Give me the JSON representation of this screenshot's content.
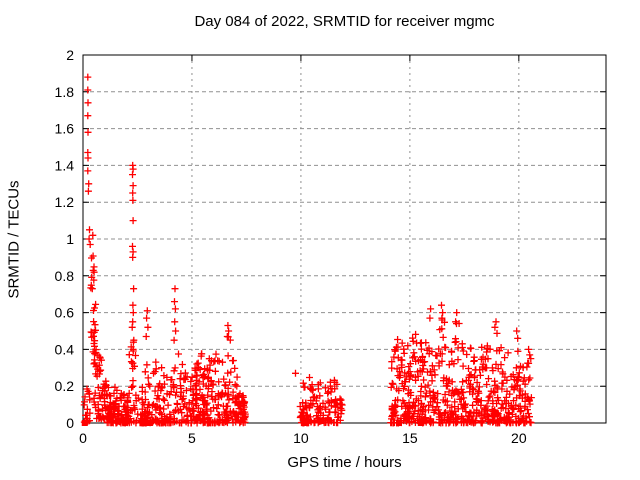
{
  "chart_data": {
    "type": "scatter",
    "title": "Day 084 of 2022, SRMTID for receiver mgmc",
    "xlabel": "GPS time / hours",
    "ylabel": "SRMTID / TECUs",
    "xlim": [
      0,
      24
    ],
    "ylim": [
      0,
      2
    ],
    "xticks": {
      "values": [
        0,
        5,
        10,
        15,
        20
      ],
      "labels": [
        "0",
        "5",
        "10",
        "15",
        "20"
      ]
    },
    "yticks": {
      "values": [
        0,
        0.2,
        0.4,
        0.6,
        0.8,
        1.0,
        1.2,
        1.4,
        1.6,
        1.8,
        2.0
      ],
      "labels": [
        "0",
        "0.2",
        "0.4",
        "0.6",
        "0.8",
        "1",
        "1.2",
        "1.4",
        "1.6",
        "1.8",
        "2"
      ]
    },
    "grid": true,
    "legend_position": "none",
    "style": {
      "point_color": "#ff0000",
      "grid_color": "#909090",
      "axis_color": "#000000",
      "background": "#ffffff",
      "marker": "plus",
      "marker_size": 7,
      "square_marker_size": 6
    },
    "seed": 1234,
    "spike_points": [
      [
        0.22,
        1.88
      ],
      [
        0.22,
        1.81
      ],
      [
        0.23,
        1.74
      ],
      [
        0.22,
        1.67
      ],
      [
        0.23,
        1.58
      ],
      [
        0.22,
        1.47
      ],
      [
        0.23,
        1.44
      ],
      [
        0.22,
        1.37
      ],
      [
        0.26,
        1.3
      ],
      [
        0.25,
        1.26
      ],
      [
        0.3,
        1.05
      ],
      [
        0.28,
        1.0
      ],
      [
        0.33,
        0.97
      ],
      [
        0.45,
        1.02
      ],
      [
        2.28,
        1.4
      ],
      [
        2.3,
        1.38
      ],
      [
        2.27,
        1.35
      ],
      [
        2.3,
        1.29
      ],
      [
        2.28,
        1.25
      ],
      [
        2.29,
        1.21
      ],
      [
        2.3,
        1.1
      ],
      [
        2.27,
        0.96
      ],
      [
        2.3,
        0.93
      ],
      [
        2.28,
        0.9
      ],
      [
        2.32,
        0.73
      ],
      [
        2.29,
        0.64
      ],
      [
        2.31,
        0.6
      ],
      [
        2.28,
        0.55
      ],
      [
        2.26,
        0.52
      ],
      [
        2.33,
        0.45
      ],
      [
        2.3,
        0.4
      ],
      [
        2.95,
        0.61
      ],
      [
        2.92,
        0.57
      ],
      [
        2.98,
        0.52
      ],
      [
        2.9,
        0.47
      ],
      [
        4.22,
        0.73
      ],
      [
        4.2,
        0.66
      ],
      [
        4.24,
        0.62
      ],
      [
        4.21,
        0.55
      ],
      [
        4.25,
        0.5
      ],
      [
        4.18,
        0.45
      ],
      [
        6.65,
        0.53
      ],
      [
        6.68,
        0.5
      ],
      [
        6.62,
        0.47
      ],
      [
        9.75,
        0.27
      ],
      [
        15.95,
        0.62
      ],
      [
        15.92,
        0.57
      ],
      [
        16.45,
        0.64
      ],
      [
        16.5,
        0.6
      ],
      [
        16.48,
        0.56
      ],
      [
        17.15,
        0.6
      ],
      [
        17.1,
        0.55
      ],
      [
        18.95,
        0.55
      ],
      [
        18.9,
        0.52
      ],
      [
        19.9,
        0.5
      ],
      [
        19.95,
        0.46
      ],
      [
        20.45,
        0.4
      ],
      [
        20.5,
        0.37
      ],
      [
        20.55,
        0.35
      ]
    ],
    "zero_squares": [
      0.08,
      3.07,
      10.2,
      14.5,
      15.5
    ],
    "clusters": [
      {
        "x0": 0.05,
        "x1": 0.32,
        "n": 20,
        "floor": 0,
        "bias": 1.8,
        "env": [
          [
            0.05,
            0.22
          ],
          [
            0.32,
            0.16
          ]
        ]
      },
      {
        "x0": 0.35,
        "x1": 0.6,
        "n": 26,
        "floor": 0.3,
        "bias": 1.0,
        "env": [
          [
            0.35,
            0.95
          ],
          [
            0.48,
            0.92
          ],
          [
            0.6,
            0.6
          ]
        ]
      },
      {
        "x0": 0.5,
        "x1": 1.3,
        "n": 75,
        "floor": 0.02,
        "bias": 1.8,
        "env": [
          [
            0.5,
            0.58
          ],
          [
            0.7,
            0.45
          ],
          [
            0.95,
            0.3
          ],
          [
            1.3,
            0.13
          ]
        ]
      },
      {
        "x0": 1.1,
        "x1": 2.0,
        "n": 85,
        "floor": 0,
        "bias": 2.2,
        "env": [
          [
            1.1,
            0.13
          ],
          [
            1.5,
            0.22
          ],
          [
            2.0,
            0.18
          ]
        ]
      },
      {
        "x0": 2.0,
        "x1": 2.45,
        "n": 40,
        "floor": 0,
        "bias": 1.8,
        "env": [
          [
            2.0,
            0.2
          ],
          [
            2.2,
            0.48
          ],
          [
            2.32,
            0.5
          ],
          [
            2.45,
            0.32
          ]
        ]
      },
      {
        "x0": 2.45,
        "x1": 2.85,
        "n": 25,
        "floor": 0,
        "bias": 2.0,
        "env": [
          [
            2.45,
            0.25
          ],
          [
            2.65,
            0.14
          ],
          [
            2.85,
            0.3
          ]
        ]
      },
      {
        "x0": 2.85,
        "x1": 3.3,
        "n": 30,
        "floor": 0,
        "bias": 1.8,
        "env": [
          [
            2.85,
            0.45
          ],
          [
            3.0,
            0.4
          ],
          [
            3.3,
            0.28
          ]
        ]
      },
      {
        "x0": 3.3,
        "x1": 4.45,
        "n": 90,
        "floor": 0,
        "bias": 2.0,
        "env": [
          [
            3.3,
            0.36
          ],
          [
            3.7,
            0.3
          ],
          [
            4.0,
            0.22
          ],
          [
            4.25,
            0.4
          ],
          [
            4.45,
            0.42
          ]
        ]
      },
      {
        "x0": 4.45,
        "x1": 5.35,
        "n": 85,
        "floor": 0,
        "bias": 2.0,
        "env": [
          [
            4.45,
            0.3
          ],
          [
            4.75,
            0.36
          ],
          [
            5.05,
            0.3
          ],
          [
            5.35,
            0.4
          ]
        ]
      },
      {
        "x0": 5.35,
        "x1": 6.3,
        "n": 100,
        "floor": 0,
        "bias": 2.0,
        "env": [
          [
            5.35,
            0.42
          ],
          [
            5.65,
            0.3
          ],
          [
            5.95,
            0.42
          ],
          [
            6.3,
            0.34
          ]
        ]
      },
      {
        "x0": 6.3,
        "x1": 7.45,
        "n": 110,
        "floor": 0,
        "bias": 2.0,
        "env": [
          [
            6.3,
            0.34
          ],
          [
            6.6,
            0.46
          ],
          [
            6.75,
            0.5
          ],
          [
            6.95,
            0.32
          ],
          [
            7.2,
            0.24
          ],
          [
            7.45,
            0.12
          ]
        ]
      },
      {
        "x0": 9.95,
        "x1": 11.9,
        "n": 140,
        "floor": 0,
        "bias": 2.2,
        "env": [
          [
            9.95,
            0.2
          ],
          [
            10.25,
            0.27
          ],
          [
            10.7,
            0.22
          ],
          [
            11.1,
            0.22
          ],
          [
            11.4,
            0.26
          ],
          [
            11.9,
            0.17
          ]
        ]
      },
      {
        "x0": 14.1,
        "x1": 15.05,
        "n": 100,
        "floor": 0,
        "bias": 2.0,
        "env": [
          [
            14.1,
            0.32
          ],
          [
            14.4,
            0.47
          ],
          [
            14.75,
            0.42
          ],
          [
            15.05,
            0.46
          ]
        ]
      },
      {
        "x0": 15.05,
        "x1": 16.25,
        "n": 110,
        "floor": 0,
        "bias": 2.0,
        "env": [
          [
            15.05,
            0.46
          ],
          [
            15.35,
            0.5
          ],
          [
            15.65,
            0.4
          ],
          [
            15.95,
            0.56
          ],
          [
            16.25,
            0.46
          ]
        ]
      },
      {
        "x0": 16.25,
        "x1": 17.5,
        "n": 120,
        "floor": 0,
        "bias": 2.0,
        "env": [
          [
            16.25,
            0.46
          ],
          [
            16.5,
            0.6
          ],
          [
            16.85,
            0.46
          ],
          [
            17.15,
            0.56
          ],
          [
            17.5,
            0.5
          ]
        ]
      },
      {
        "x0": 17.5,
        "x1": 18.7,
        "n": 110,
        "floor": 0,
        "bias": 2.0,
        "env": [
          [
            17.5,
            0.46
          ],
          [
            17.95,
            0.38
          ],
          [
            18.35,
            0.46
          ],
          [
            18.7,
            0.42
          ]
        ]
      },
      {
        "x0": 18.7,
        "x1": 19.65,
        "n": 90,
        "floor": 0,
        "bias": 2.0,
        "env": [
          [
            18.7,
            0.32
          ],
          [
            19.0,
            0.54
          ],
          [
            19.3,
            0.4
          ],
          [
            19.65,
            0.44
          ]
        ]
      },
      {
        "x0": 19.65,
        "x1": 20.6,
        "n": 80,
        "floor": 0,
        "bias": 2.2,
        "env": [
          [
            19.65,
            0.32
          ],
          [
            19.95,
            0.48
          ],
          [
            20.25,
            0.34
          ],
          [
            20.6,
            0.4
          ]
        ]
      }
    ]
  }
}
